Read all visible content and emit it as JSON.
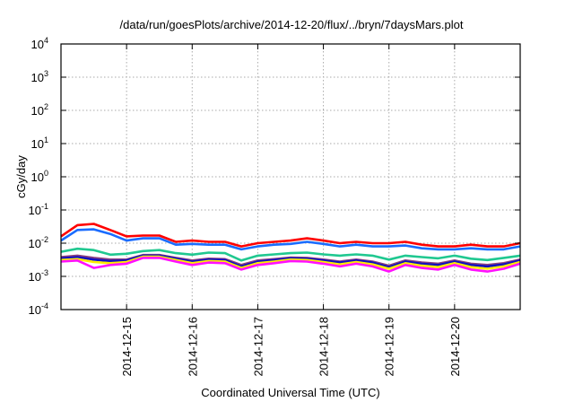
{
  "chart_data": {
    "type": "line",
    "title": "/data/run/goesPlots/archive/2014-12-20/flux/../bryn/7daysMars.plot",
    "xlabel": "Coordinated Universal Time (UTC)",
    "ylabel": "cGy/day",
    "yscale": "log",
    "ylim": [
      0.0001,
      10000
    ],
    "y_ticks": [
      {
        "exp": "4",
        "value": 10000
      },
      {
        "exp": "3",
        "value": 1000
      },
      {
        "exp": "2",
        "value": 100
      },
      {
        "exp": "1",
        "value": 10
      },
      {
        "exp": "0",
        "value": 1
      },
      {
        "exp": "-1",
        "value": 0.1
      },
      {
        "exp": "-2",
        "value": 0.01
      },
      {
        "exp": "-3",
        "value": 0.001
      },
      {
        "exp": "-4",
        "value": 0.0001
      }
    ],
    "y_tick_base": "10",
    "x_unit": "days since 2014-12-14 00:00 UTC",
    "xlim": [
      0,
      7
    ],
    "x_ticks": [
      {
        "label": "2014-12-15",
        "value": 1
      },
      {
        "label": "2014-12-16",
        "value": 2
      },
      {
        "label": "2014-12-17",
        "value": 3
      },
      {
        "label": "2014-12-18",
        "value": 4
      },
      {
        "label": "2014-12-19",
        "value": 5
      },
      {
        "label": "2014-12-20",
        "value": 6
      }
    ],
    "grid": true,
    "x": [
      0,
      0.25,
      0.5,
      0.75,
      1,
      1.25,
      1.5,
      1.75,
      2,
      2.25,
      2.5,
      2.75,
      3,
      3.25,
      3.5,
      3.75,
      4,
      4.25,
      4.5,
      4.75,
      5,
      5.25,
      5.5,
      5.75,
      6,
      6.25,
      6.5,
      6.75,
      7
    ],
    "series": [
      {
        "name": "red",
        "color": "#ff0000",
        "values": [
          0.016,
          0.035,
          0.038,
          0.025,
          0.016,
          0.017,
          0.017,
          0.011,
          0.012,
          0.011,
          0.011,
          0.008,
          0.01,
          0.011,
          0.012,
          0.014,
          0.012,
          0.01,
          0.011,
          0.01,
          0.01,
          0.011,
          0.009,
          0.008,
          0.008,
          0.009,
          0.008,
          0.008,
          0.01
        ]
      },
      {
        "name": "blue",
        "color": "#1a6cff",
        "values": [
          0.012,
          0.025,
          0.026,
          0.019,
          0.012,
          0.014,
          0.014,
          0.009,
          0.0095,
          0.009,
          0.009,
          0.0065,
          0.008,
          0.009,
          0.0095,
          0.011,
          0.0095,
          0.008,
          0.009,
          0.008,
          0.008,
          0.0085,
          0.007,
          0.0065,
          0.0065,
          0.007,
          0.0065,
          0.0065,
          0.008
        ]
      },
      {
        "name": "teal",
        "color": "#20c890",
        "values": [
          0.0055,
          0.0068,
          0.0062,
          0.0045,
          0.0048,
          0.0058,
          0.0062,
          0.005,
          0.0045,
          0.0052,
          0.005,
          0.003,
          0.0042,
          0.0046,
          0.005,
          0.0052,
          0.0046,
          0.0042,
          0.0046,
          0.0042,
          0.0032,
          0.0042,
          0.0038,
          0.0035,
          0.0042,
          0.0034,
          0.0031,
          0.0036,
          0.0042
        ]
      },
      {
        "name": "purple",
        "color": "#8a4080",
        "values": [
          0.0038,
          0.0042,
          0.0036,
          0.0032,
          0.0032,
          0.0044,
          0.0044,
          0.0036,
          0.003,
          0.0034,
          0.0033,
          0.0022,
          0.003,
          0.0033,
          0.0037,
          0.0036,
          0.0032,
          0.0028,
          0.0032,
          0.0028,
          0.0021,
          0.003,
          0.0026,
          0.0024,
          0.003,
          0.0024,
          0.0022,
          0.0025,
          0.0032
        ]
      },
      {
        "name": "dark-blue",
        "color": "#1010c0",
        "values": [
          0.0035,
          0.0038,
          0.0032,
          0.0029,
          0.003,
          0.0042,
          0.0042,
          0.0034,
          0.0028,
          0.0032,
          0.0031,
          0.002,
          0.0028,
          0.0031,
          0.0035,
          0.0034,
          0.003,
          0.0026,
          0.003,
          0.0026,
          0.0019,
          0.0028,
          0.0024,
          0.0022,
          0.0028,
          0.0022,
          0.002,
          0.0023,
          0.003
        ]
      },
      {
        "name": "yellow",
        "color": "#ffee00",
        "values": [
          0.0031,
          0.0033,
          0.0027,
          0.0025,
          0.0027,
          0.0039,
          0.0039,
          0.0031,
          0.0025,
          0.0029,
          0.0028,
          0.0018,
          0.0025,
          0.0028,
          0.0032,
          0.0031,
          0.0027,
          0.0023,
          0.0027,
          0.0023,
          0.0017,
          0.0025,
          0.0021,
          0.0019,
          0.0025,
          0.0019,
          0.0017,
          0.002,
          0.0027
        ]
      },
      {
        "name": "magenta",
        "color": "#ff10ff",
        "values": [
          0.0028,
          0.003,
          0.0018,
          0.0022,
          0.0024,
          0.0036,
          0.0036,
          0.0028,
          0.0022,
          0.0026,
          0.0025,
          0.0016,
          0.0022,
          0.0025,
          0.0029,
          0.0028,
          0.0024,
          0.002,
          0.0024,
          0.002,
          0.0014,
          0.0022,
          0.0018,
          0.0016,
          0.0022,
          0.0016,
          0.0014,
          0.0017,
          0.0024
        ]
      }
    ]
  }
}
